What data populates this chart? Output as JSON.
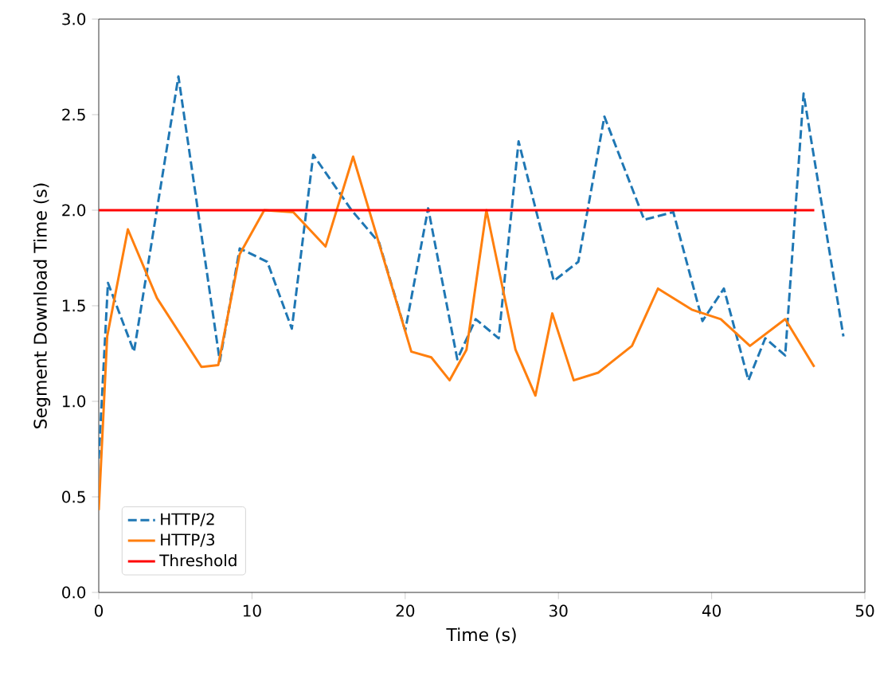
{
  "chart_data": {
    "type": "line",
    "xlabel": "Time (s)",
    "ylabel": "Segment Download Time (s)",
    "xlim": [
      0,
      50
    ],
    "xticks": [
      0,
      10,
      20,
      30,
      40,
      50
    ],
    "ylim": [
      0,
      3
    ],
    "yticks": [
      {
        "value": 0,
        "label": "0.0"
      },
      {
        "value": 0.5,
        "label": "0.5"
      },
      {
        "value": 1,
        "label": "1.0"
      },
      {
        "value": 1.5,
        "label": "1.5"
      },
      {
        "value": 2,
        "label": "2.0"
      },
      {
        "value": 2.5,
        "label": "2.5"
      },
      {
        "value": 3,
        "label": "3.0"
      }
    ],
    "legend": "bottom left",
    "series": [
      {
        "name": "HTTP/2",
        "color": "#1f77b4",
        "line_style": "dashed",
        "x": [
          0,
          0.6,
          2.3,
          5.2,
          7.9,
          9.2,
          11.0,
          12.6,
          14.0,
          16.5,
          18.3,
          20.0,
          21.5,
          23.4,
          24.6,
          26.1,
          27.4,
          29.7,
          31.3,
          33.0,
          35.6,
          37.5,
          39.4,
          40.8,
          42.4,
          43.5,
          44.8,
          46.0,
          48.6
        ],
        "values": [
          0.7,
          1.62,
          1.26,
          2.7,
          1.21,
          1.8,
          1.73,
          1.38,
          2.29,
          2.0,
          1.83,
          1.37,
          2.01,
          1.22,
          1.43,
          1.33,
          2.36,
          1.63,
          1.73,
          2.49,
          1.95,
          1.99,
          1.42,
          1.59,
          1.11,
          1.33,
          1.24,
          2.61,
          1.34
        ]
      },
      {
        "name": "HTTP/3",
        "color": "#ff7f0e",
        "line_style": "solid",
        "x": [
          0,
          0.55,
          1.9,
          3.8,
          6.7,
          7.8,
          9.2,
          10.8,
          12.7,
          14.8,
          16.6,
          20.4,
          21.7,
          22.9,
          24.0,
          25.3,
          27.2,
          28.5,
          29.6,
          31.0,
          32.6,
          34.8,
          36.5,
          38.7,
          40.6,
          42.5,
          44.8,
          46.7
        ],
        "values": [
          0.43,
          1.34,
          1.9,
          1.54,
          1.18,
          1.19,
          1.77,
          2.0,
          1.99,
          1.81,
          2.28,
          1.26,
          1.23,
          1.11,
          1.27,
          2.0,
          1.27,
          1.03,
          1.46,
          1.11,
          1.15,
          1.29,
          1.59,
          1.48,
          1.43,
          1.29,
          1.43,
          1.18
        ]
      },
      {
        "name": "Threshold",
        "color": "#ff0000",
        "line_style": "solid",
        "x": [
          0,
          46.7
        ],
        "values": [
          2,
          2
        ]
      }
    ]
  }
}
